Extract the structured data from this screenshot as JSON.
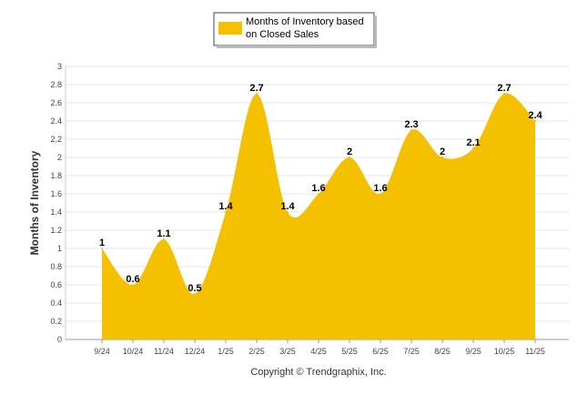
{
  "chart_data": {
    "type": "area",
    "title": "",
    "xlabel": "",
    "ylabel": "Months of Inventory",
    "ylim": [
      0,
      3
    ],
    "y_ticks": [
      "0",
      "0.2",
      "0.4",
      "0.6",
      "0.8",
      "1",
      "1.2",
      "1.4",
      "1.6",
      "1.8",
      "2",
      "2.2",
      "2.4",
      "2.6",
      "2.8",
      "3"
    ],
    "categories": [
      "9/24",
      "10/24",
      "11/24",
      "12/24",
      "1/25",
      "2/25",
      "3/25",
      "4/25",
      "5/25",
      "6/25",
      "7/25",
      "8/25",
      "9/25",
      "10/25",
      "11/25"
    ],
    "series": [
      {
        "name": "Months of Inventory based on Closed Sales",
        "values": [
          1,
          0.6,
          1.1,
          0.5,
          1.4,
          2.7,
          1.4,
          1.6,
          2,
          1.6,
          2.3,
          2,
          2.1,
          2.7,
          2.4
        ],
        "labels": [
          "1",
          "0.6",
          "1.1",
          "0.5",
          "1.4",
          "2.7",
          "1.4",
          "1.6",
          "2",
          "1.6",
          "2.3",
          "2",
          "2.1",
          "2.7",
          "2.4"
        ],
        "color": "#F5C000"
      }
    ],
    "grid": true,
    "legend": "top-center"
  },
  "legend": {
    "line1": "Months of Inventory based",
    "line2": "on Closed Sales"
  },
  "footer": {
    "copyright": "Copyright © Trendgraphix, Inc."
  }
}
